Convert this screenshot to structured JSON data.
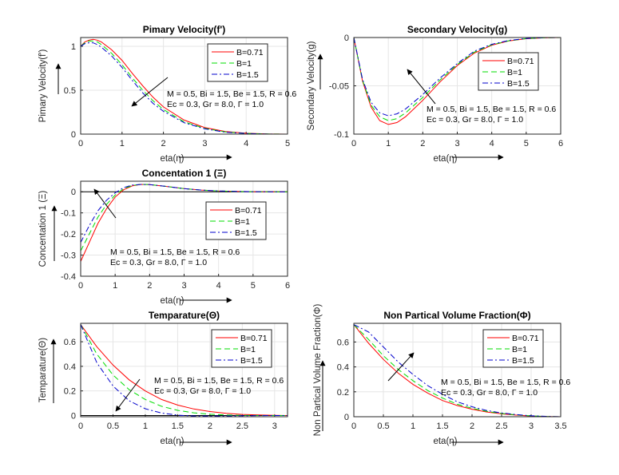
{
  "colors": {
    "B=0.71": "#ff0000",
    "B=1": "#00dd00",
    "B=1.5": "#0000cc",
    "axis": "#262626",
    "grid": "#e6e6e6"
  },
  "chart_data": [
    {
      "type": "line",
      "title": "Pimary Velocity(f')",
      "xlabel": "eta(η)",
      "ylabel": "Pimary Velocity(f')",
      "xlim": [
        0,
        5
      ],
      "ylim": [
        0,
        1.1
      ],
      "xticks": [
        "0",
        "1",
        "2",
        "3",
        "4",
        "5"
      ],
      "yticks": [
        "0",
        "0.5",
        "1"
      ],
      "grid": true,
      "legend": "top-right",
      "annotation": [
        "M = 0.5, Bi = 1.5, Be = 1.5, R = 0.6",
        "Ec = 0.3, Gr = 8.0, Γ = 1.0"
      ],
      "series": [
        {
          "name": "B=0.71",
          "style": "solid",
          "x": [
            0,
            0.1,
            0.2,
            0.3,
            0.4,
            0.5,
            0.75,
            1,
            1.25,
            1.5,
            1.75,
            2,
            2.5,
            3,
            3.5,
            4,
            4.5,
            5
          ],
          "y": [
            1,
            1.05,
            1.07,
            1.08,
            1.07,
            1.05,
            0.96,
            0.84,
            0.69,
            0.55,
            0.42,
            0.31,
            0.16,
            0.075,
            0.03,
            0.01,
            0.002,
            0
          ]
        },
        {
          "name": "B=1",
          "style": "dashed",
          "x": [
            0,
            0.1,
            0.2,
            0.3,
            0.4,
            0.5,
            0.75,
            1,
            1.25,
            1.5,
            1.75,
            2,
            2.5,
            3,
            3.5,
            4,
            4.5,
            5
          ],
          "y": [
            1,
            1.04,
            1.06,
            1.06,
            1.05,
            1.02,
            0.92,
            0.79,
            0.64,
            0.5,
            0.38,
            0.28,
            0.14,
            0.065,
            0.025,
            0.008,
            0.002,
            0
          ]
        },
        {
          "name": "B=1.5",
          "style": "dashdot",
          "x": [
            0,
            0.1,
            0.2,
            0.3,
            0.4,
            0.5,
            0.75,
            1,
            1.25,
            1.5,
            1.75,
            2,
            2.5,
            3,
            3.5,
            4,
            4.5,
            5
          ],
          "y": [
            1,
            1.03,
            1.04,
            1.04,
            1.02,
            0.99,
            0.89,
            0.76,
            0.61,
            0.47,
            0.35,
            0.26,
            0.13,
            0.06,
            0.022,
            0.007,
            0.001,
            0
          ]
        }
      ]
    },
    {
      "type": "line",
      "title": "Secondary Velocity(g)",
      "xlabel": "eta(η)",
      "ylabel": "Secondary Velocity(g)",
      "xlim": [
        0,
        6
      ],
      "ylim": [
        -0.1,
        0
      ],
      "xticks": [
        "0",
        "1",
        "2",
        "3",
        "4",
        "5",
        "6"
      ],
      "yticks": [
        "-0.1",
        "-0.05",
        "0"
      ],
      "grid": true,
      "legend": "top-right",
      "annotation": [
        "M = 0.5, Bi = 1.5, Be = 1.5, R = 0.6",
        "Ec = 0.3, Gr = 8.0, Γ = 1.0"
      ],
      "series": [
        {
          "name": "B=0.71",
          "style": "solid",
          "x": [
            0,
            0.25,
            0.5,
            0.75,
            1,
            1.25,
            1.5,
            2,
            2.5,
            3,
            3.5,
            4,
            4.5,
            5,
            5.5,
            6
          ],
          "y": [
            0,
            -0.045,
            -0.072,
            -0.086,
            -0.09,
            -0.088,
            -0.082,
            -0.065,
            -0.046,
            -0.029,
            -0.016,
            -0.008,
            -0.0035,
            -0.0012,
            -0.0003,
            0
          ]
        },
        {
          "name": "B=1",
          "style": "dashed",
          "x": [
            0,
            0.25,
            0.5,
            0.75,
            1,
            1.25,
            1.5,
            2,
            2.5,
            3,
            3.5,
            4,
            4.5,
            5,
            5.5,
            6
          ],
          "y": [
            0,
            -0.044,
            -0.07,
            -0.082,
            -0.086,
            -0.084,
            -0.078,
            -0.062,
            -0.044,
            -0.028,
            -0.015,
            -0.0075,
            -0.0033,
            -0.0011,
            -0.0003,
            0
          ]
        },
        {
          "name": "B=1.5",
          "style": "dashdot",
          "x": [
            0,
            0.25,
            0.5,
            0.75,
            1,
            1.25,
            1.5,
            2,
            2.5,
            3,
            3.5,
            4,
            4.5,
            5,
            5.5,
            6
          ],
          "y": [
            0,
            -0.043,
            -0.067,
            -0.078,
            -0.081,
            -0.079,
            -0.074,
            -0.059,
            -0.042,
            -0.027,
            -0.014,
            -0.007,
            -0.003,
            -0.001,
            -0.0002,
            0
          ]
        }
      ]
    },
    {
      "type": "line",
      "title": "Concentation 1 (Ξ)",
      "xlabel": "eta(η)",
      "ylabel": "Concentation 1 (Ξ)",
      "xlim": [
        0,
        6
      ],
      "ylim": [
        -0.4,
        0.05
      ],
      "xticks": [
        "0",
        "1",
        "2",
        "3",
        "4",
        "5",
        "6"
      ],
      "yticks": [
        "-0.4",
        "-0.3",
        "-0.2",
        "-0.1",
        "0"
      ],
      "grid": true,
      "legend": "top-right",
      "annotation": [
        "M = 0.5, Bi = 1.5, Be = 1.5, R = 0.6",
        "Ec = 0.3, Gr = 8.0, Γ = 1.0"
      ],
      "series": [
        {
          "name": "B=0.71",
          "style": "solid",
          "x": [
            0,
            0.25,
            0.5,
            0.75,
            1,
            1.25,
            1.5,
            1.75,
            2,
            2.5,
            3,
            3.5,
            4,
            4.5,
            5,
            5.5,
            6
          ],
          "y": [
            -0.33,
            -0.24,
            -0.15,
            -0.08,
            -0.025,
            0.01,
            0.028,
            0.035,
            0.034,
            0.025,
            0.015,
            0.008,
            0.004,
            0.0015,
            0.0005,
            0.0001,
            0
          ]
        },
        {
          "name": "B=1",
          "style": "dashed",
          "x": [
            0,
            0.25,
            0.5,
            0.75,
            1,
            1.25,
            1.5,
            1.75,
            2,
            2.5,
            3,
            3.5,
            4,
            4.5,
            5,
            5.5,
            6
          ],
          "y": [
            -0.28,
            -0.2,
            -0.12,
            -0.06,
            -0.015,
            0.015,
            0.03,
            0.035,
            0.034,
            0.025,
            0.015,
            0.008,
            0.004,
            0.0015,
            0.0005,
            0.0001,
            0
          ]
        },
        {
          "name": "B=1.5",
          "style": "dashdot",
          "x": [
            0,
            0.25,
            0.5,
            0.75,
            1,
            1.25,
            1.5,
            1.75,
            2,
            2.5,
            3,
            3.5,
            4,
            4.5,
            5,
            5.5,
            6
          ],
          "y": [
            -0.24,
            -0.16,
            -0.09,
            -0.04,
            -0.005,
            0.02,
            0.032,
            0.035,
            0.034,
            0.025,
            0.015,
            0.008,
            0.004,
            0.0015,
            0.0005,
            0.0001,
            0
          ]
        }
      ]
    },
    {
      "type": "line",
      "title": "Temparature(Θ)",
      "xlabel": "eta(η)",
      "ylabel": "Temparature(Θ)",
      "xlim": [
        0,
        3.2
      ],
      "ylim": [
        -0.01,
        0.75
      ],
      "xticks": [
        "0",
        "0.5",
        "1",
        "1.5",
        "2",
        "2.5",
        "3"
      ],
      "yticks": [
        "0",
        "0.2",
        "0.4",
        "0.6"
      ],
      "grid": true,
      "legend": "top-right",
      "annotation": [
        "M = 0.5, Bi = 1.5, Be = 1.5, R = 0.6",
        "Ec = 0.3, Gr = 8.0, Γ = 1.0"
      ],
      "series": [
        {
          "name": "B=0.71",
          "style": "solid",
          "x": [
            0,
            0.25,
            0.5,
            0.75,
            1,
            1.25,
            1.5,
            1.75,
            2,
            2.25,
            2.5,
            2.75,
            3,
            3.2
          ],
          "y": [
            0.74,
            0.56,
            0.41,
            0.29,
            0.2,
            0.13,
            0.085,
            0.053,
            0.032,
            0.018,
            0.009,
            0.004,
            0.001,
            0
          ]
        },
        {
          "name": "B=1",
          "style": "dashed",
          "x": [
            0,
            0.25,
            0.5,
            0.75,
            1,
            1.25,
            1.5,
            1.75,
            2,
            2.25,
            2.5,
            2.75,
            3,
            3.2
          ],
          "y": [
            0.74,
            0.5,
            0.33,
            0.21,
            0.13,
            0.075,
            0.042,
            0.022,
            0.01,
            0.004,
            0.001,
            0,
            0,
            0
          ]
        },
        {
          "name": "B=1.5",
          "style": "dashdot",
          "x": [
            0,
            0.25,
            0.5,
            0.75,
            1,
            1.25,
            1.5,
            1.75,
            2,
            2.25,
            2.5,
            2.75,
            3,
            3.2
          ],
          "y": [
            0.74,
            0.43,
            0.24,
            0.12,
            0.055,
            0.02,
            0.003,
            -0.004,
            -0.005,
            -0.004,
            -0.002,
            -0.001,
            0,
            0
          ]
        }
      ]
    },
    {
      "type": "line",
      "title": "Non Partical Volume Fraction(Φ)",
      "xlabel": "eta(η)",
      "ylabel": "Non Partical Volume Fraction(Φ)",
      "xlim": [
        0,
        3.5
      ],
      "ylim": [
        0,
        0.75
      ],
      "xticks": [
        "0",
        "0.5",
        "1",
        "1.5",
        "2",
        "2.5",
        "3",
        "3.5"
      ],
      "yticks": [
        "0",
        "0.2",
        "0.4",
        "0.6"
      ],
      "grid": true,
      "legend": "top-right",
      "annotation": [
        "M = 0.5, Bi = 1.5, Be = 1.5, R = 0.6",
        "Ec = 0.3, Gr = 8.0, Γ = 1.0"
      ],
      "series": [
        {
          "name": "B=0.71",
          "style": "solid",
          "x": [
            0,
            0.25,
            0.5,
            0.75,
            1,
            1.25,
            1.5,
            1.75,
            2,
            2.25,
            2.5,
            2.75,
            3,
            3.25,
            3.5
          ],
          "y": [
            0.74,
            0.59,
            0.46,
            0.35,
            0.26,
            0.19,
            0.13,
            0.09,
            0.06,
            0.038,
            0.023,
            0.013,
            0.006,
            0.002,
            0
          ]
        },
        {
          "name": "B=1",
          "style": "dashed",
          "x": [
            0,
            0.25,
            0.5,
            0.75,
            1,
            1.25,
            1.5,
            1.75,
            2,
            2.25,
            2.5,
            2.75,
            3,
            3.25,
            3.5
          ],
          "y": [
            0.74,
            0.62,
            0.49,
            0.38,
            0.29,
            0.21,
            0.15,
            0.1,
            0.068,
            0.043,
            0.026,
            0.015,
            0.007,
            0.002,
            0
          ]
        },
        {
          "name": "B=1.5",
          "style": "dashdot",
          "x": [
            0,
            0.25,
            0.5,
            0.75,
            1,
            1.25,
            1.5,
            1.75,
            2,
            2.25,
            2.5,
            2.75,
            3,
            3.25,
            3.5
          ],
          "y": [
            0.74,
            0.68,
            0.56,
            0.44,
            0.34,
            0.25,
            0.18,
            0.12,
            0.08,
            0.05,
            0.03,
            0.017,
            0.008,
            0.003,
            0
          ]
        }
      ]
    }
  ]
}
